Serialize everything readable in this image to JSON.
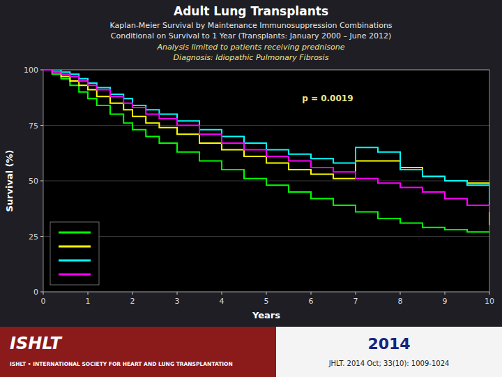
{
  "chart_data": {
    "type": "step",
    "title": "Adult Lung Transplants",
    "subtitle": [
      "Kaplan-Meier Survival by Maintenance Immunosuppression Combinations",
      "Conditional on Survival to 1 Year (Transplants: January 2000 – June 2012)",
      "Analysis limited to patients receiving prednisone",
      "Diagnosis: Idiopathic Pulmonary Fibrosis"
    ],
    "x_label": "Years",
    "y_label": "Survival (%)",
    "x": [
      0,
      0.2,
      0.4,
      0.6,
      0.8,
      1.0,
      1.2,
      1.5,
      1.8,
      2.0,
      2.3,
      2.6,
      3.0,
      3.5,
      4.0,
      4.5,
      5.0,
      5.5,
      6.0,
      6.5,
      7.0,
      7.5,
      8.0,
      8.5,
      9.0,
      9.5,
      10.0
    ],
    "series": [
      {
        "color": "#00ff00",
        "values": [
          100,
          98,
          96,
          93,
          90,
          87,
          84,
          80,
          76,
          73,
          70,
          67,
          63,
          59,
          55,
          51,
          48,
          45,
          42,
          39,
          36,
          33,
          31,
          29,
          28,
          27,
          27
        ]
      },
      {
        "color": "#ffff00",
        "values": [
          100,
          99,
          97,
          95,
          93,
          91,
          88,
          85,
          82,
          79,
          76,
          74,
          71,
          67,
          64,
          61,
          58,
          55,
          53,
          51,
          59,
          59,
          56,
          52,
          50,
          49,
          30
        ]
      },
      {
        "color": "#00ffff",
        "values": [
          100,
          100,
          99,
          98,
          96,
          94,
          92,
          89,
          87,
          84,
          82,
          80,
          77,
          73,
          70,
          67,
          64,
          62,
          60,
          58,
          65,
          63,
          55,
          52,
          50,
          48,
          40
        ]
      },
      {
        "color": "#ff00ff",
        "values": [
          100,
          99,
          98,
          97,
          95,
          93,
          91,
          88,
          85,
          83,
          80,
          78,
          75,
          71,
          67,
          64,
          61,
          59,
          56,
          54,
          51,
          49,
          47,
          45,
          42,
          39,
          36
        ]
      }
    ],
    "xlim": [
      0,
      10
    ],
    "ylim": [
      0,
      100
    ],
    "xticks": [
      0,
      1,
      2,
      3,
      4,
      5,
      6,
      7,
      8,
      9,
      10
    ],
    "yticks": [
      0,
      25,
      50,
      75,
      100
    ],
    "grid": true,
    "legend": "lower left",
    "annotations": [
      {
        "text": "p = 0.0019",
        "x": 5.8,
        "y": 86
      }
    ],
    "footer": [
      "ISHLT",
      "ISHLT • INTERNATIONAL SOCIETY FOR HEART AND LUNG TRANSPLANTATION",
      "2014",
      "JHLT. 2014 Oct; 33(10): 1009-1024"
    ]
  }
}
